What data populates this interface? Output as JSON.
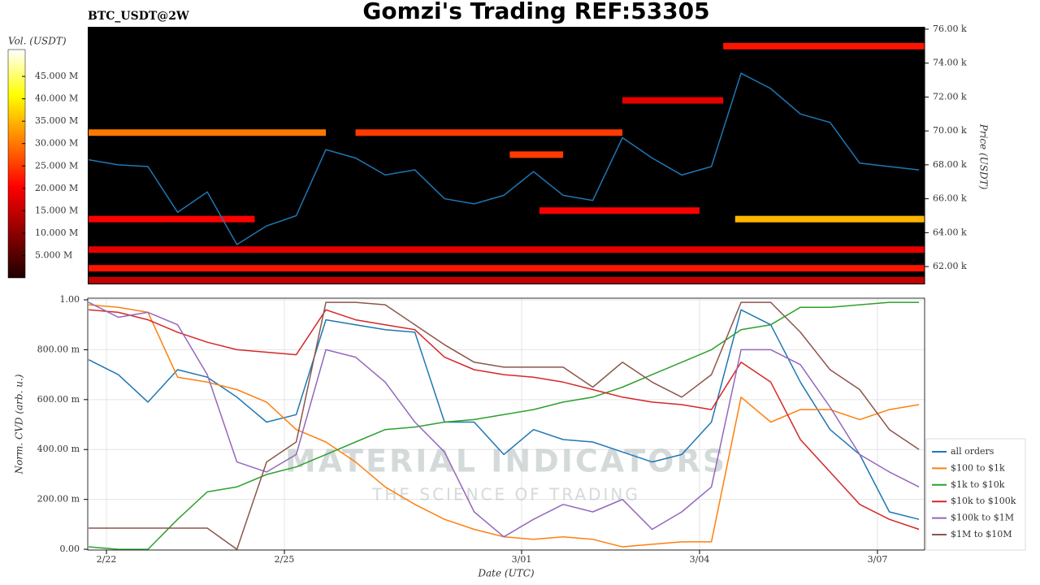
{
  "chart_data": [
    {
      "type": "heatmap",
      "title": "Gomzi's Trading REF:53305",
      "subtitle": "BTC_USDT@2W",
      "colorbar_label": "Vol. (USDT)",
      "y_label": "Price (USDT)",
      "colormap": "hot",
      "background": "#000000",
      "xlim": [
        -0.315,
        13.795
      ],
      "ylim": [
        60950,
        76140
      ],
      "yticks": [
        {
          "value": 62000,
          "label": "62.00 k"
        },
        {
          "value": 64000,
          "label": "64.00 k"
        },
        {
          "value": 66000,
          "label": "66.00 k"
        },
        {
          "value": 68000,
          "label": "68.00 k"
        },
        {
          "value": 70000,
          "label": "70.00 k"
        },
        {
          "value": 72000,
          "label": "72.00 k"
        },
        {
          "value": 74000,
          "label": "74.00 k"
        },
        {
          "value": 76000,
          "label": "76.00 k"
        }
      ],
      "zlim": [
        0,
        51000000
      ],
      "zticks": [
        {
          "value": 5000000,
          "label": "5.000 M"
        },
        {
          "value": 10000000,
          "label": "10.000 M"
        },
        {
          "value": 15000000,
          "label": "15.000 M"
        },
        {
          "value": 20000000,
          "label": "20.000 M"
        },
        {
          "value": 25000000,
          "label": "25.000 M"
        },
        {
          "value": 30000000,
          "label": "30.000 M"
        },
        {
          "value": 35000000,
          "label": "35.000 M"
        },
        {
          "value": 40000000,
          "label": "40.000 M"
        },
        {
          "value": 45000000,
          "label": "45.000 M"
        }
      ],
      "cells": [
        {
          "x0": -0.3,
          "x1": 3.7,
          "price": 69900,
          "volume": 30000000
        },
        {
          "x0": 4.2,
          "x1": 8.7,
          "price": 69900,
          "volume": 25000000
        },
        {
          "x0": 10.6,
          "x1": 13.79,
          "price": 64800,
          "volume": 35000000
        },
        {
          "x0": -0.3,
          "x1": 2.5,
          "price": 64800,
          "volume": 20000000
        },
        {
          "x0": 7.3,
          "x1": 10.0,
          "price": 65300,
          "volume": 20000000
        },
        {
          "x0": -0.3,
          "x1": 13.79,
          "price": 61900,
          "volume": 22000000
        },
        {
          "x0": -0.3,
          "x1": 13.79,
          "price": 63000,
          "volume": 18000000
        },
        {
          "x0": 10.4,
          "x1": 13.79,
          "price": 75000,
          "volume": 22000000
        },
        {
          "x0": 6.8,
          "x1": 7.7,
          "price": 68600,
          "volume": 25000000
        },
        {
          "x0": 8.7,
          "x1": 10.4,
          "price": 71800,
          "volume": 18000000
        },
        {
          "x0": -0.3,
          "x1": 13.79,
          "price": 61200,
          "volume": 15000000
        }
      ],
      "x": [
        -0.3,
        0.2,
        0.7,
        1.2,
        1.7,
        2.2,
        2.7,
        3.2,
        3.7,
        4.2,
        4.7,
        5.2,
        5.7,
        6.2,
        6.7,
        7.2,
        7.7,
        8.2,
        8.7,
        9.2,
        9.7,
        10.2,
        10.7,
        11.2,
        11.7,
        12.2,
        12.7,
        13.2,
        13.7
      ],
      "price": {
        "color": "#1f77b4",
        "values": [
          68300,
          68000,
          67900,
          65200,
          66400,
          63300,
          64400,
          65000,
          68900,
          68400,
          67400,
          67700,
          66000,
          65700,
          66200,
          67600,
          66200,
          65900,
          69600,
          68400,
          67400,
          67900,
          73400,
          72500,
          71000,
          70500,
          68100,
          67900,
          67700
        ]
      }
    },
    {
      "type": "line",
      "x_label": "Date (UTC)",
      "y_label": "Norm. CVD (arb. u.)",
      "grid": true,
      "watermark": {
        "title": "MATERIAL INDICATORS",
        "subtitle": "THE SCIENCE OF TRADING"
      },
      "xlim": [
        -0.315,
        13.795
      ],
      "xticks": [
        {
          "value": 0,
          "label": "2/22"
        },
        {
          "value": 3,
          "label": "2/25"
        },
        {
          "value": 7,
          "label": "3/01"
        },
        {
          "value": 10,
          "label": "3/04"
        },
        {
          "value": 13,
          "label": "3/07"
        }
      ],
      "ylim": [
        -0.003,
        1.0065
      ],
      "yticks": [
        {
          "value": 0,
          "label": "0.00"
        },
        {
          "value": 0.2,
          "label": "200.00 m"
        },
        {
          "value": 0.4,
          "label": "400.00 m"
        },
        {
          "value": 0.6,
          "label": "600.00 m"
        },
        {
          "value": 0.8,
          "label": "800.00 m"
        },
        {
          "value": 1,
          "label": "1.00"
        }
      ],
      "x": [
        -0.3,
        0.2,
        0.7,
        1.2,
        1.7,
        2.2,
        2.7,
        3.2,
        3.7,
        4.2,
        4.7,
        5.2,
        5.7,
        6.2,
        6.7,
        7.2,
        7.7,
        8.2,
        8.7,
        9.2,
        9.7,
        10.2,
        10.7,
        11.2,
        11.7,
        12.2,
        12.7,
        13.2,
        13.7
      ],
      "series": [
        {
          "name": "all orders",
          "color": "#1f77b4",
          "values": [
            0.76,
            0.7,
            0.59,
            0.72,
            0.69,
            0.61,
            0.51,
            0.54,
            0.92,
            0.9,
            0.88,
            0.87,
            0.51,
            0.51,
            0.38,
            0.48,
            0.44,
            0.43,
            0.39,
            0.35,
            0.38,
            0.51,
            0.96,
            0.9,
            0.67,
            0.48,
            0.38,
            0.15,
            0.12
          ]
        },
        {
          "name": "$100 to $1k",
          "color": "#ff7f0e",
          "values": [
            0.98,
            0.97,
            0.95,
            0.69,
            0.67,
            0.64,
            0.59,
            0.48,
            0.43,
            0.35,
            0.25,
            0.18,
            0.12,
            0.08,
            0.05,
            0.04,
            0.05,
            0.04,
            0.01,
            0.02,
            0.03,
            0.03,
            0.61,
            0.51,
            0.56,
            0.56,
            0.52,
            0.56,
            0.58
          ]
        },
        {
          "name": "$1k to $10k",
          "color": "#2ca02c",
          "values": [
            0.01,
            0.0,
            0.0,
            0.12,
            0.23,
            0.25,
            0.3,
            0.33,
            0.38,
            0.43,
            0.48,
            0.49,
            0.51,
            0.52,
            0.54,
            0.56,
            0.59,
            0.61,
            0.65,
            0.7,
            0.75,
            0.8,
            0.88,
            0.9,
            0.97,
            0.97,
            0.98,
            0.99,
            0.99
          ]
        },
        {
          "name": "$10k to $100k",
          "color": "#d62728",
          "values": [
            0.96,
            0.95,
            0.92,
            0.87,
            0.83,
            0.8,
            0.79,
            0.78,
            0.96,
            0.92,
            0.9,
            0.88,
            0.77,
            0.72,
            0.7,
            0.69,
            0.67,
            0.64,
            0.61,
            0.59,
            0.58,
            0.56,
            0.75,
            0.67,
            0.44,
            0.31,
            0.18,
            0.12,
            0.08
          ]
        },
        {
          "name": "$100k to $1M",
          "color": "#9467bd",
          "values": [
            0.99,
            0.93,
            0.95,
            0.9,
            0.7,
            0.35,
            0.31,
            0.38,
            0.8,
            0.77,
            0.67,
            0.51,
            0.39,
            0.15,
            0.05,
            0.12,
            0.18,
            0.15,
            0.2,
            0.08,
            0.15,
            0.25,
            0.8,
            0.8,
            0.74,
            0.57,
            0.38,
            0.31,
            0.25
          ]
        },
        {
          "name": "$1M to $10M",
          "color": "#8c564b",
          "values": [
            0.085,
            0.085,
            0.085,
            0.085,
            0.085,
            0.0,
            0.35,
            0.43,
            0.99,
            0.99,
            0.98,
            0.9,
            0.82,
            0.75,
            0.73,
            0.73,
            0.73,
            0.65,
            0.75,
            0.67,
            0.61,
            0.7,
            0.99,
            0.99,
            0.87,
            0.72,
            0.64,
            0.48,
            0.4
          ]
        }
      ]
    }
  ]
}
